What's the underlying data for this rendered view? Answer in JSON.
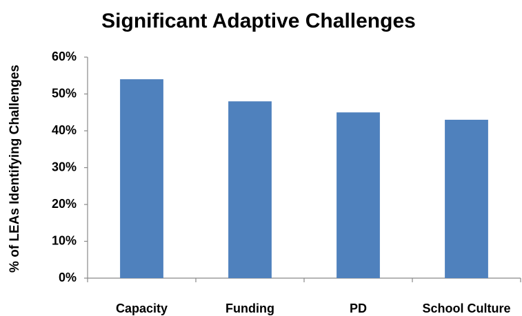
{
  "chart_data": {
    "type": "bar",
    "title": "Significant Adaptive Challenges",
    "y_label": "% of LEAs Identifying Challenges",
    "categories": [
      "Capacity",
      "Funding",
      "PD",
      "School Culture"
    ],
    "values": [
      54,
      48,
      45,
      43
    ],
    "color": "#4f81bd",
    "ylim": [
      0,
      60
    ],
    "yticks": [
      {
        "value": 0,
        "label": "0%"
      },
      {
        "value": 10,
        "label": "10%"
      },
      {
        "value": 20,
        "label": "20%"
      },
      {
        "value": 30,
        "label": "30%"
      },
      {
        "value": 40,
        "label": "40%"
      },
      {
        "value": 50,
        "label": "50%"
      },
      {
        "value": 60,
        "label": "60%"
      }
    ],
    "grid": false
  }
}
